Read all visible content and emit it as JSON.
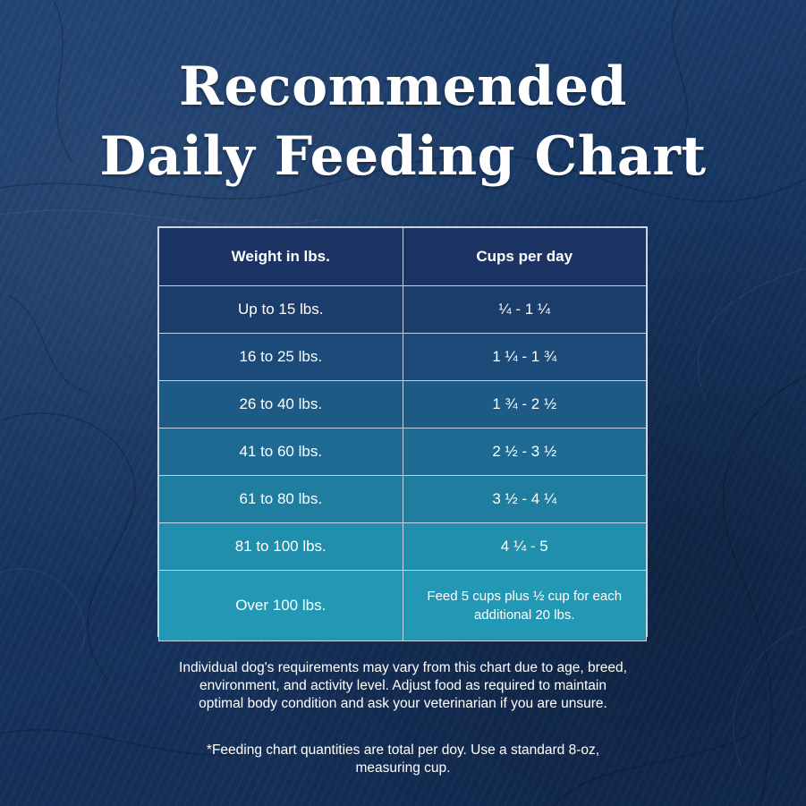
{
  "title_lines": [
    "Recommended",
    "Daily Feeding Chart"
  ],
  "chart_data": {
    "type": "table",
    "title": "Recommended Daily Feeding Chart",
    "columns": [
      "Weight in lbs.",
      "Cups per day"
    ],
    "rows": [
      [
        "Up to 15 lbs.",
        "¼ - 1 ¼"
      ],
      [
        "16 to 25 lbs.",
        "1 ¼  - 1 ¾"
      ],
      [
        "26 to 40 lbs.",
        "1 ¾  - 2 ½"
      ],
      [
        "41 to 60 lbs.",
        "2 ½  - 3 ½"
      ],
      [
        "61 to 80 lbs.",
        "3 ½  - 4 ¼"
      ],
      [
        "81 to 100 lbs.",
        "4 ¼  - 5"
      ],
      [
        "Over 100 lbs.",
        "Feed 5 cups plus ½ cup for each additional 20 lbs."
      ]
    ]
  },
  "colors": {
    "header_bg": "#1b3463",
    "row_bgs": [
      "#1b3d6b",
      "#1c4b79",
      "#1d5a85",
      "#1e6a92",
      "#1f7da0",
      "#208eac",
      "#2298b5"
    ],
    "border": "#c7d3e2"
  },
  "footer": {
    "disclaimer": "Individual dog's requirements may vary from this chart due to age, breed, environment, and activity level. Adjust food as required to maintain optimal body condition and ask your veterinarian if you are unsure.",
    "note": "*Feeding chart quantities are total per doy. Use a standard 8-oz, measuring cup."
  }
}
